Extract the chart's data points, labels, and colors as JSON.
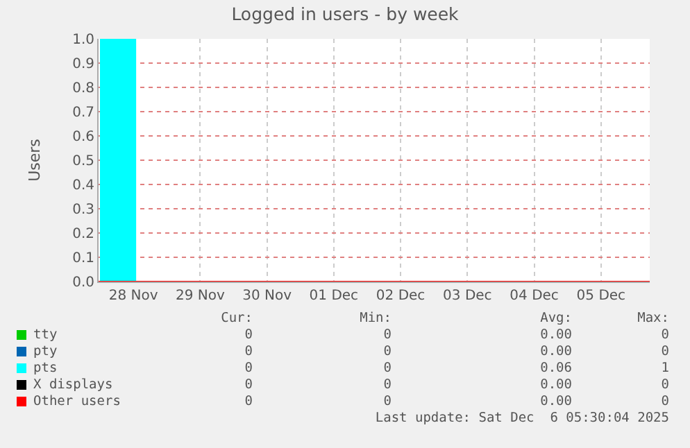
{
  "chart_data": {
    "type": "area",
    "title": "Logged in users - by week",
    "ylabel": "Users",
    "xlim": [
      "2025-11-27T23:30",
      "2025-12-06T05:30"
    ],
    "xticks": [
      {
        "value": "2025-11-28T12:00",
        "label": "28 Nov"
      },
      {
        "value": "2025-11-29T12:00",
        "label": "29 Nov"
      },
      {
        "value": "2025-11-30T12:00",
        "label": "30 Nov"
      },
      {
        "value": "2025-12-01T12:00",
        "label": "01 Dec"
      },
      {
        "value": "2025-12-02T12:00",
        "label": "02 Dec"
      },
      {
        "value": "2025-12-03T12:00",
        "label": "03 Dec"
      },
      {
        "value": "2025-12-04T12:00",
        "label": "04 Dec"
      },
      {
        "value": "2025-12-05T12:00",
        "label": "05 Dec"
      }
    ],
    "ylim": [
      0,
      1
    ],
    "yticks": [
      {
        "value": 0,
        "label": "0.0"
      },
      {
        "value": 0.1,
        "label": "0.1"
      },
      {
        "value": 0.2,
        "label": "0.2"
      },
      {
        "value": 0.3,
        "label": "0.3"
      },
      {
        "value": 0.4,
        "label": "0.4"
      },
      {
        "value": 0.5,
        "label": "0.5"
      },
      {
        "value": 0.6,
        "label": "0.6"
      },
      {
        "value": 0.7,
        "label": "0.7"
      },
      {
        "value": 0.8,
        "label": "0.8"
      },
      {
        "value": 0.9,
        "label": "0.9"
      },
      {
        "value": 1,
        "label": "1.0"
      }
    ],
    "grid": true,
    "legend": "bottom",
    "line_style": "solid",
    "series": [
      {
        "name": "tty",
        "type": "line",
        "color": "#00cc00",
        "values": [
          null
        ]
      },
      {
        "name": "pty",
        "type": "line",
        "color": "#0066b3",
        "values": [
          null
        ]
      },
      {
        "name": "pts",
        "color": "#00ffff",
        "x": [
          "2025-11-28T00:00",
          "2025-11-28T13:00",
          "2025-12-06T05:30"
        ],
        "values": [
          1,
          0,
          0
        ]
      },
      {
        "name": "X displays",
        "type": "line",
        "color": "#000000",
        "values": [
          null
        ]
      },
      {
        "name": "Other users",
        "type": "line",
        "color": "#ff0000",
        "x": [
          "2025-11-27T23:30",
          "2025-12-06T05:30"
        ],
        "values": [
          0,
          0
        ]
      }
    ],
    "annotations": [
      "Cur:",
      "Min:",
      "Avg:",
      "Max:",
      "0",
      "0",
      "0.00",
      "0",
      "0",
      "0",
      "0.00",
      "0",
      "0",
      "0",
      "0.06",
      "1",
      "0",
      "0",
      "0.00",
      "0",
      "0",
      "0",
      "0.00",
      "0",
      "Last update: Sat Dec  6 05:30:04 2025"
    ]
  }
}
